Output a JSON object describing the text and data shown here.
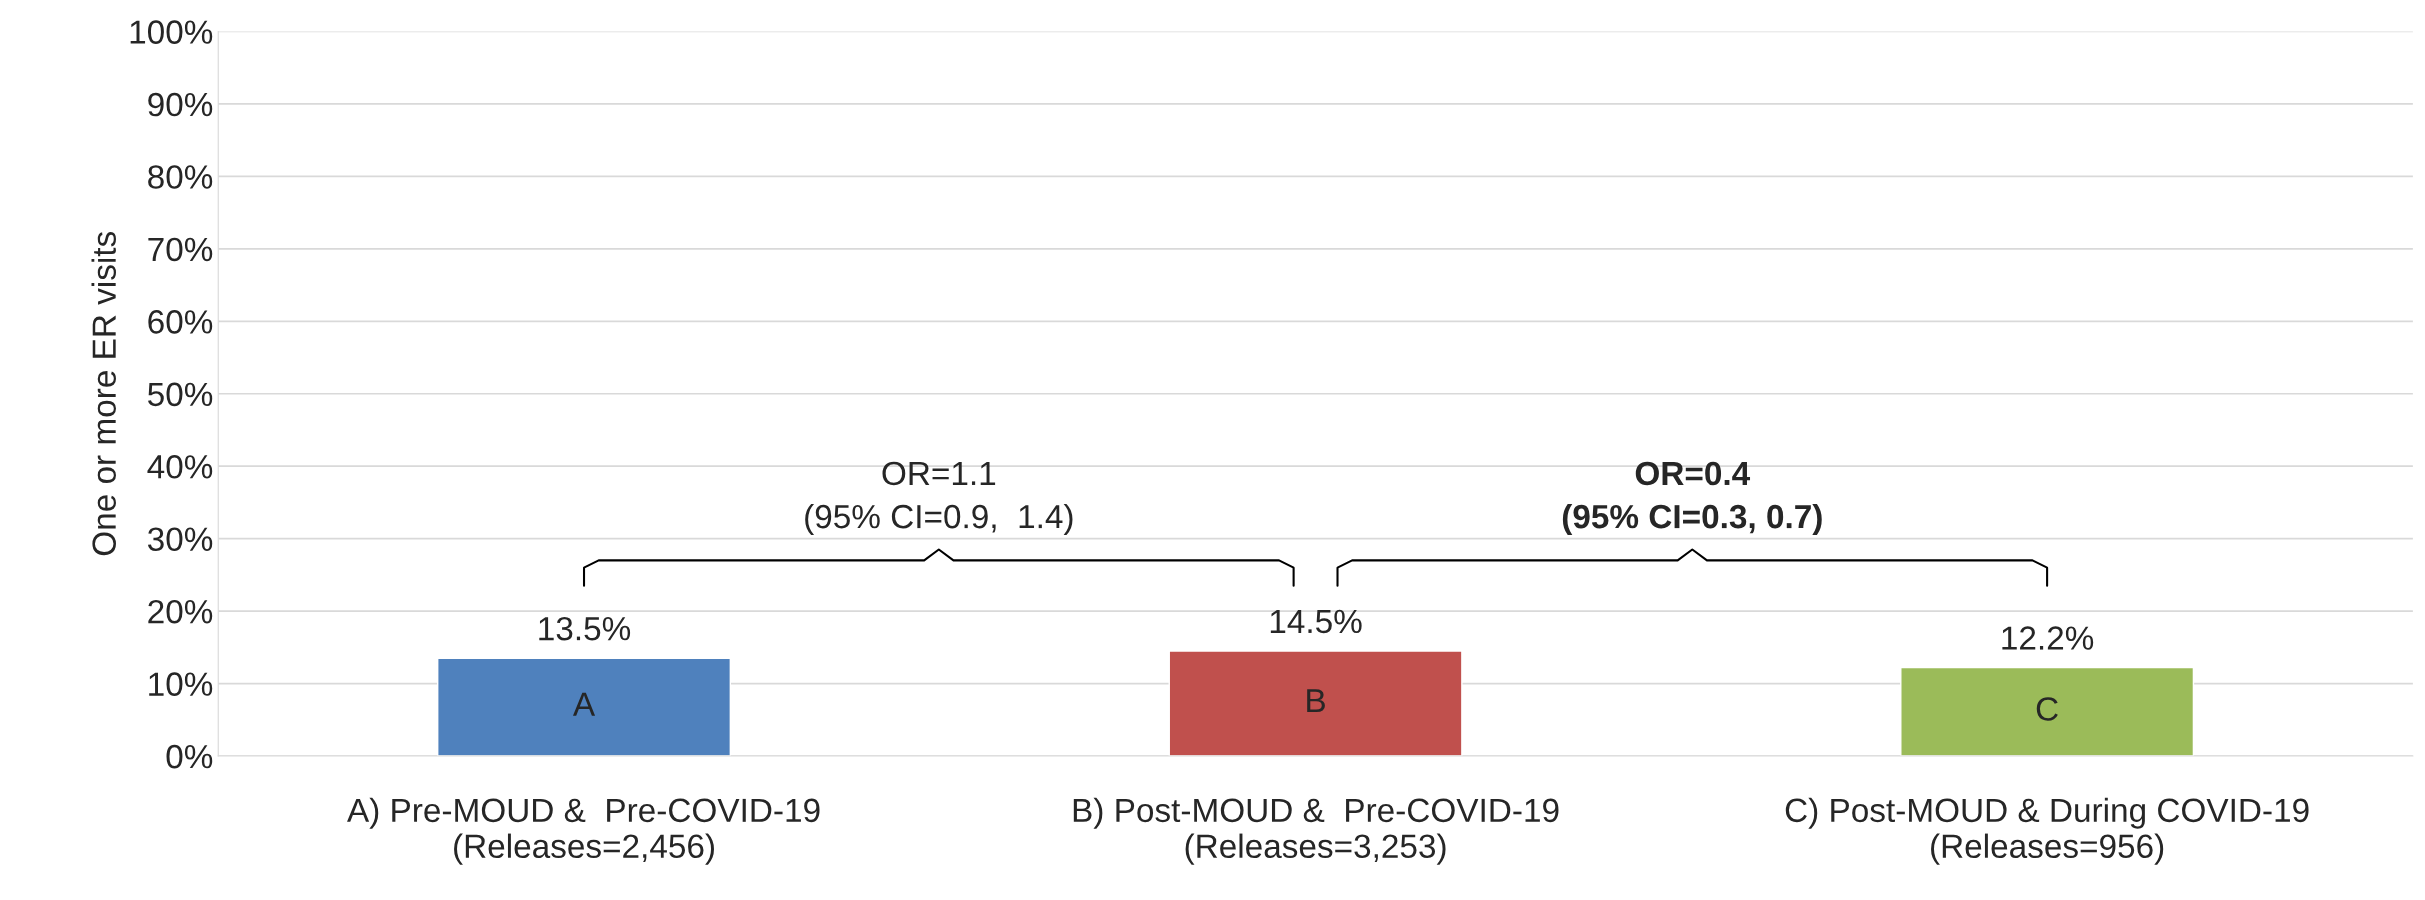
{
  "chart_data": {
    "type": "bar",
    "ylabel": "One or more ER visits",
    "categories": [
      "A) Pre-MOUD &  Pre-COVID-19\n(Releases=2,456)",
      "B) Post-MOUD &  Pre-COVID-19\n(Releases=3,253)",
      "C) Post-MOUD & During COVID-19\n(Releases=956)"
    ],
    "values": [
      13.5,
      14.5,
      12.2
    ],
    "colors": [
      "#4f81bd",
      "#c0504d",
      "#9bbb59"
    ],
    "value_labels": [
      "13.5%",
      "14.5%",
      "12.2%"
    ],
    "ylim": [
      0,
      100
    ],
    "yticks": [
      {
        "value": 0,
        "label": "0%"
      },
      {
        "value": 10,
        "label": "10%"
      },
      {
        "value": 20,
        "label": "20%"
      },
      {
        "value": 30,
        "label": "30%"
      },
      {
        "value": 40,
        "label": "40%"
      },
      {
        "value": 50,
        "label": "50%"
      },
      {
        "value": 60,
        "label": "60%"
      },
      {
        "value": 70,
        "label": "70%"
      },
      {
        "value": 80,
        "label": "80%"
      },
      {
        "value": 90,
        "label": "90%"
      },
      {
        "value": 100,
        "label": "100%"
      }
    ],
    "grid": "y",
    "annotations": [
      "A",
      "B",
      "C",
      "OR=1.1\n(95% CI=0.9,  1.4)",
      "OR=0.4\n(95% CI=0.3, 0.7)"
    ]
  }
}
